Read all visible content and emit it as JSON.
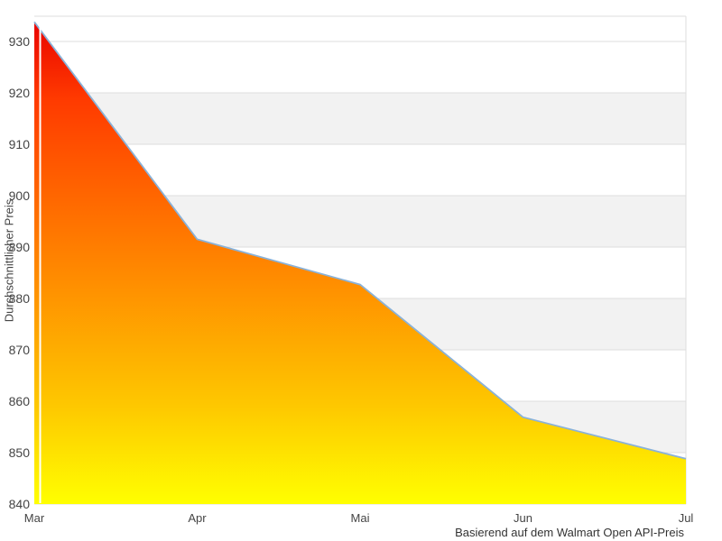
{
  "chart_data": {
    "type": "area",
    "categories": [
      "Mar",
      "Apr",
      "Mai",
      "Jun",
      "Jul"
    ],
    "values": [
      933.8,
      891.5,
      882.7,
      856.9,
      848.8
    ],
    "title": "",
    "xlabel": "Basierend auf dem Walmart Open API-Preis",
    "ylabel": "Durchschnittlicher Preis",
    "ylim": [
      840,
      934.9
    ],
    "yticks": [
      840,
      850,
      860,
      870,
      880,
      890,
      900,
      910,
      920,
      930
    ],
    "grid": "horizontal-gridlines-with-alternating-bands",
    "legend": "none",
    "gradient": [
      {
        "offset": 0,
        "color": "#e80000"
      },
      {
        "offset": 0.17,
        "color": "#ff3a00"
      },
      {
        "offset": 0.52,
        "color": "#ff8800"
      },
      {
        "offset": 0.8,
        "color": "#fec800"
      },
      {
        "offset": 1,
        "color": "#ffff00"
      }
    ],
    "colors": {
      "line": "#8ab2d8",
      "band": "#f2f2f2",
      "grid": "#dddddd",
      "text": "#444444",
      "background": "#ffffff"
    }
  }
}
